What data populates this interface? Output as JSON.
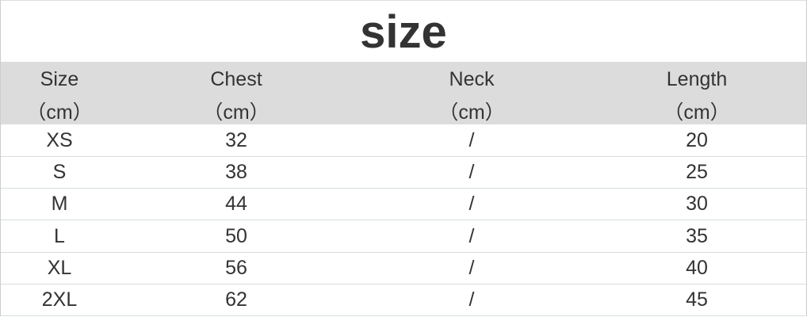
{
  "title": "size",
  "columns": [
    {
      "label": "Size",
      "unit": "（cm）"
    },
    {
      "label": "Chest",
      "unit": "（cm）"
    },
    {
      "label": "Neck",
      "unit": "（cm）"
    },
    {
      "label": "Length",
      "unit": "（cm）"
    }
  ],
  "rows": [
    [
      "XS",
      "32",
      "/",
      "20"
    ],
    [
      "S",
      "38",
      "/",
      "25"
    ],
    [
      "M",
      "44",
      "/",
      "30"
    ],
    [
      "L",
      "50",
      "/",
      "35"
    ],
    [
      "XL",
      "56",
      "/",
      "40"
    ],
    [
      "2XL",
      "62",
      "/",
      "45"
    ]
  ]
}
